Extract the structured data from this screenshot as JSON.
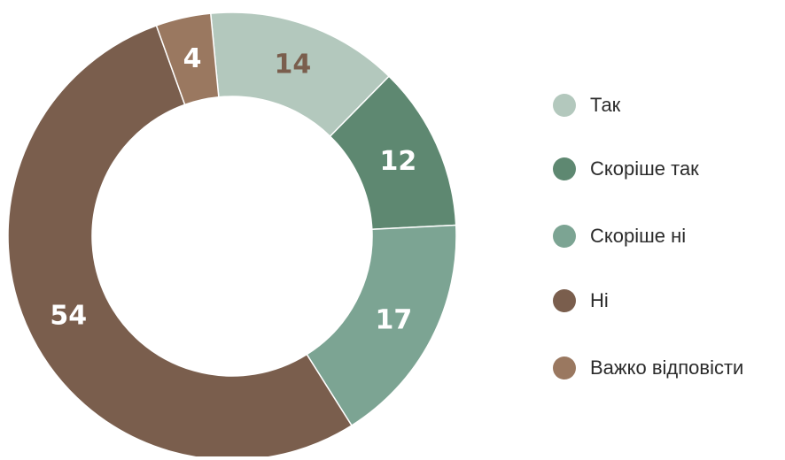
{
  "chart_data": {
    "type": "pie",
    "subtype": "donut",
    "categories": [
      "Так",
      "Скоріше так",
      "Скоріше ні",
      "Ні",
      "Важко відповісти"
    ],
    "values": [
      14,
      12,
      17,
      54,
      4
    ],
    "colors": [
      "#b3c8bd",
      "#5e8871",
      "#7ca493",
      "#7a5e4d",
      "#9a7860"
    ],
    "label_colors": [
      "#7a5e4d",
      "#ffffff",
      "#ffffff",
      "#ffffff",
      "#ffffff"
    ],
    "data_labels": [
      "14",
      "12",
      "17",
      "54",
      "4"
    ],
    "legend_position": "right",
    "title": ""
  },
  "legend": {
    "items": [
      {
        "label": "Так",
        "color": "#b3c8bd"
      },
      {
        "label": "Скоріше так",
        "color": "#5e8871"
      },
      {
        "label": "Скоріше ні",
        "color": "#7ca493"
      },
      {
        "label": "Ні",
        "color": "#7a5e4d"
      },
      {
        "label": "Важко відповісти",
        "color": "#9a7860"
      }
    ]
  }
}
